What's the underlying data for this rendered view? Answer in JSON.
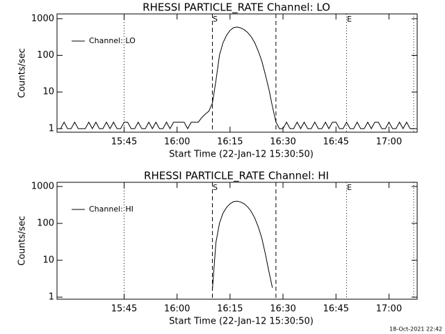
{
  "chart_data": [
    {
      "type": "line",
      "title": "RHESSI PARTICLE_RATE Channel: LO",
      "xlabel": "Start Time (22-Jan-12 15:30:50)",
      "ylabel": "Counts/sec",
      "x": [
        "15:27",
        "15:28",
        "15:29",
        "15:30",
        "15:31",
        "15:32",
        "15:33",
        "15:34",
        "15:35",
        "15:36",
        "15:37",
        "15:38",
        "15:39",
        "15:40",
        "15:41",
        "15:42",
        "15:43",
        "15:44",
        "15:45",
        "15:46",
        "15:47",
        "15:48",
        "15:49",
        "15:50",
        "15:51",
        "15:52",
        "15:53",
        "15:54",
        "15:55",
        "15:56",
        "15:57",
        "15:58",
        "15:59",
        "16:00",
        "16:01",
        "16:02",
        "16:03",
        "16:04",
        "16:05",
        "16:06",
        "16:07",
        "16:08",
        "16:09",
        "16:10",
        "16:11",
        "16:12",
        "16:13",
        "16:14",
        "16:15",
        "16:16",
        "16:17",
        "16:18",
        "16:19",
        "16:20",
        "16:21",
        "16:22",
        "16:23",
        "16:24",
        "16:25",
        "16:26",
        "16:27",
        "16:28",
        "16:29",
        "16:30",
        "16:31",
        "16:32",
        "16:33",
        "16:34",
        "16:35",
        "16:36",
        "16:37",
        "16:38",
        "16:39",
        "16:40",
        "16:41",
        "16:42",
        "16:43",
        "16:44",
        "16:45",
        "16:46",
        "16:47",
        "16:48",
        "16:49",
        "16:50",
        "16:51",
        "16:52",
        "16:53",
        "16:54",
        "16:55",
        "16:56",
        "16:57",
        "16:58",
        "16:59",
        "17:00",
        "17:01",
        "17:02",
        "17:03",
        "17:04",
        "17:05",
        "17:06",
        "17:07"
      ],
      "series": [
        {
          "name": "Channel: LO",
          "color": "#000000",
          "values": [
            1,
            1.5,
            1,
            1,
            1.5,
            1,
            1,
            1,
            1.5,
            1,
            1.5,
            1,
            1,
            1.5,
            1,
            1.5,
            1,
            1,
            1.5,
            1.5,
            1,
            1,
            1.5,
            1,
            1,
            1.5,
            1,
            1.5,
            1,
            1,
            1.5,
            1,
            1.5,
            1.5,
            1.5,
            1.5,
            1,
            1.5,
            1.5,
            1.5,
            2,
            2.5,
            3,
            5,
            20,
            100,
            220,
            350,
            480,
            570,
            590,
            560,
            500,
            420,
            320,
            220,
            130,
            70,
            30,
            12,
            4,
            1.5,
            1,
            1,
            1.5,
            1,
            1,
            1.5,
            1,
            1.5,
            1,
            1,
            1.5,
            1,
            1,
            1.5,
            1,
            1.5,
            1.5,
            1,
            1,
            1.5,
            1,
            1,
            1.5,
            1,
            1,
            1.5,
            1,
            1.5,
            1.5,
            1,
            1,
            1.5,
            1,
            1,
            1.5,
            1,
            1.5,
            1,
            1
          ]
        }
      ],
      "xlim": [
        "15:26",
        "17:08"
      ],
      "xticks": [
        "15:45",
        "16:00",
        "16:15",
        "16:30",
        "16:45",
        "17:00"
      ],
      "ylim": [
        0.8,
        1350
      ],
      "yticks": [
        1,
        10,
        100,
        1000
      ],
      "ylog": true,
      "legend": "upper left",
      "markers": [
        {
          "x": "16:10",
          "style": "dashed",
          "label": "S"
        },
        {
          "x": "16:28",
          "style": "dashed"
        },
        {
          "x": "15:45",
          "style": "dotted"
        },
        {
          "x": "16:48",
          "style": "dotted",
          "label": "E"
        },
        {
          "x": "17:07",
          "style": "dotted"
        }
      ]
    },
    {
      "type": "line",
      "title": "RHESSI PARTICLE_RATE Channel: HI",
      "xlabel": "Start Time (22-Jan-12 15:30:50)",
      "ylabel": "Counts/sec",
      "x": [
        "16:10",
        "16:11",
        "16:12",
        "16:13",
        "16:14",
        "16:15",
        "16:16",
        "16:17",
        "16:18",
        "16:19",
        "16:20",
        "16:21",
        "16:22",
        "16:23",
        "16:24",
        "16:25",
        "16:26",
        "16:27"
      ],
      "series": [
        {
          "name": "Channel: HI",
          "color": "#000000",
          "values": [
            1.6,
            30,
            100,
            190,
            270,
            340,
            390,
            400,
            380,
            340,
            280,
            210,
            140,
            80,
            40,
            15,
            5,
            1.8
          ]
        }
      ],
      "xlim": [
        "15:26",
        "17:08"
      ],
      "xticks": [
        "15:45",
        "16:00",
        "16:15",
        "16:30",
        "16:45",
        "17:00"
      ],
      "ylim": [
        0.88,
        1300
      ],
      "yticks": [
        1,
        10,
        100,
        1000
      ],
      "ylog": true,
      "legend": "upper left",
      "markers": [
        {
          "x": "16:10",
          "style": "dashed",
          "label": "S"
        },
        {
          "x": "16:28",
          "style": "dashed"
        },
        {
          "x": "15:45",
          "style": "dotted"
        },
        {
          "x": "16:48",
          "style": "dotted",
          "label": "E"
        },
        {
          "x": "17:07",
          "style": "dotted"
        }
      ]
    }
  ],
  "footer": "18-Oct-2021 22:42"
}
